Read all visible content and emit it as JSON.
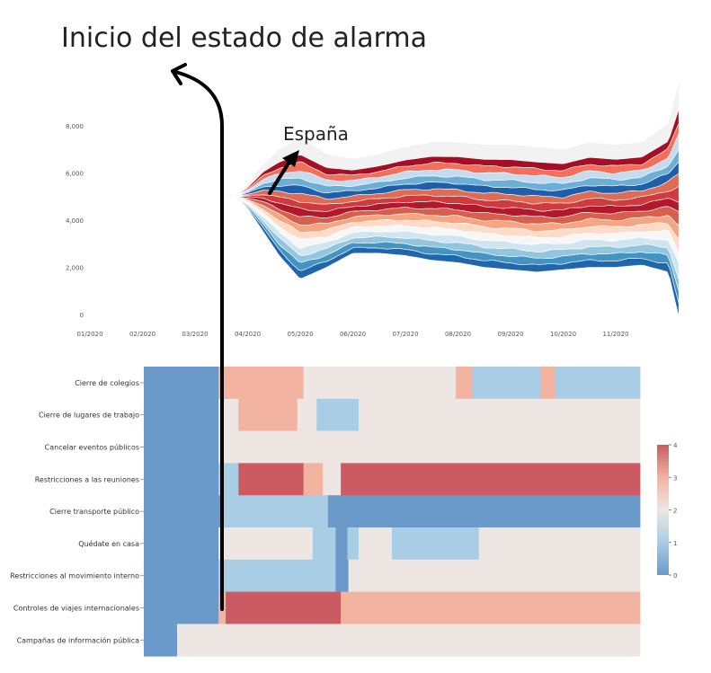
{
  "annotations": {
    "title": "Inicio del estado de alarma",
    "country_label": "España"
  },
  "chart_data": [
    {
      "type": "area",
      "subtype": "streamgraph",
      "x_ticks": [
        "01/2020",
        "02/2020",
        "03/2020",
        "04/2020",
        "05/2020",
        "06/2020",
        "07/2020",
        "08/2020",
        "09/2020",
        "10/2020",
        "11/2020"
      ],
      "y_ticks": [
        "0",
        "2,000",
        "4,000",
        "6,000",
        "8,000"
      ],
      "ylim": [
        0,
        8000
      ],
      "baseline_value": 5000,
      "grid": false,
      "outline": {
        "x": [
          0,
          2,
          2.3,
          2.6,
          2.8,
          3.0,
          3.3,
          3.6,
          4.0,
          4.5,
          5.0,
          5.5,
          6.0,
          6.5,
          7.0,
          7.5,
          8.0,
          8.5,
          9.0,
          9.5,
          10.0,
          10.5,
          11.0,
          11.2
        ],
        "top": [
          5000,
          5000,
          5010,
          5030,
          5100,
          5500,
          6400,
          7000,
          7500,
          6800,
          6600,
          6800,
          7100,
          7300,
          7300,
          7200,
          7200,
          7100,
          7000,
          7300,
          7200,
          7300,
          8100,
          9900
        ],
        "bottom": [
          5000,
          5000,
          4990,
          4970,
          4900,
          4500,
          3500,
          2500,
          1500,
          2000,
          2600,
          2600,
          2500,
          2300,
          2200,
          2000,
          1900,
          1800,
          1900,
          2000,
          2000,
          2100,
          1800,
          -100
        ]
      },
      "band_colors": [
        "#2166ac",
        "#4393c3",
        "#92c5de",
        "#d1e5f0",
        "#f7f7f7",
        "#fddbc7",
        "#f4a582",
        "#d6604d",
        "#b2182b",
        "#cf3a3e",
        "#e06b55",
        "#1f5ea8",
        "#6baed6",
        "#c6dbef",
        "#f26f5c",
        "#a50f26"
      ],
      "envelope_color": "#f2f2f2"
    },
    {
      "type": "heatmap",
      "rows": [
        "Cierre de colegios",
        "Cierre de lugares de trabajo",
        "Cancelar eventos públicos",
        "Restricciones a las reuniones",
        "Cierre transporte público",
        "Quédate en casa",
        "Restricciones al movimiento interno",
        "Controles de viajes internacionales",
        "Campañas de información pública"
      ],
      "x_range": [
        1,
        10.7
      ],
      "segments": [
        [
          [
            1.0,
            2.46,
            0
          ],
          [
            2.46,
            4.12,
            3
          ],
          [
            4.12,
            7.1,
            2
          ],
          [
            7.1,
            7.42,
            3
          ],
          [
            7.42,
            8.75,
            1
          ],
          [
            8.75,
            9.05,
            3
          ],
          [
            9.05,
            10.7,
            1
          ]
        ],
        [
          [
            1.0,
            2.46,
            0
          ],
          [
            2.46,
            2.85,
            2
          ],
          [
            2.85,
            4.0,
            3
          ],
          [
            4.0,
            4.38,
            2
          ],
          [
            4.38,
            5.2,
            1
          ],
          [
            5.2,
            10.7,
            2
          ]
        ],
        [
          [
            1.0,
            2.46,
            0
          ],
          [
            2.46,
            10.7,
            2
          ]
        ],
        [
          [
            1.0,
            2.46,
            0
          ],
          [
            2.46,
            2.85,
            1
          ],
          [
            2.85,
            4.12,
            4
          ],
          [
            4.12,
            4.5,
            3
          ],
          [
            4.5,
            4.85,
            2
          ],
          [
            4.85,
            10.7,
            4
          ]
        ],
        [
          [
            1.0,
            2.46,
            0
          ],
          [
            2.46,
            2.5,
            0
          ],
          [
            2.5,
            4.6,
            1
          ],
          [
            4.6,
            10.7,
            0
          ]
        ],
        [
          [
            1.0,
            2.46,
            0
          ],
          [
            2.46,
            4.3,
            2
          ],
          [
            4.3,
            4.75,
            1
          ],
          [
            4.75,
            4.98,
            0
          ],
          [
            4.98,
            5.2,
            1
          ],
          [
            5.2,
            5.85,
            2
          ],
          [
            5.85,
            7.55,
            1
          ],
          [
            7.55,
            10.7,
            2
          ]
        ],
        [
          [
            1.0,
            2.46,
            0
          ],
          [
            2.46,
            4.75,
            1
          ],
          [
            4.75,
            5.0,
            0
          ],
          [
            5.0,
            10.7,
            2
          ]
        ],
        [
          [
            1.0,
            2.46,
            0
          ],
          [
            2.46,
            2.6,
            3
          ],
          [
            2.6,
            4.85,
            4
          ],
          [
            4.85,
            10.7,
            3
          ]
        ],
        [
          [
            1.0,
            1.65,
            0
          ],
          [
            1.65,
            10.7,
            2
          ]
        ]
      ],
      "colorscale": [
        "#6a9ac9",
        "#a8cde4",
        "#eee6e3",
        "#f2b3a0",
        "#cc5a63"
      ],
      "colorbar_ticks": [
        "0",
        "1",
        "2",
        "3",
        "4"
      ],
      "zrange": [
        0,
        4
      ]
    }
  ]
}
